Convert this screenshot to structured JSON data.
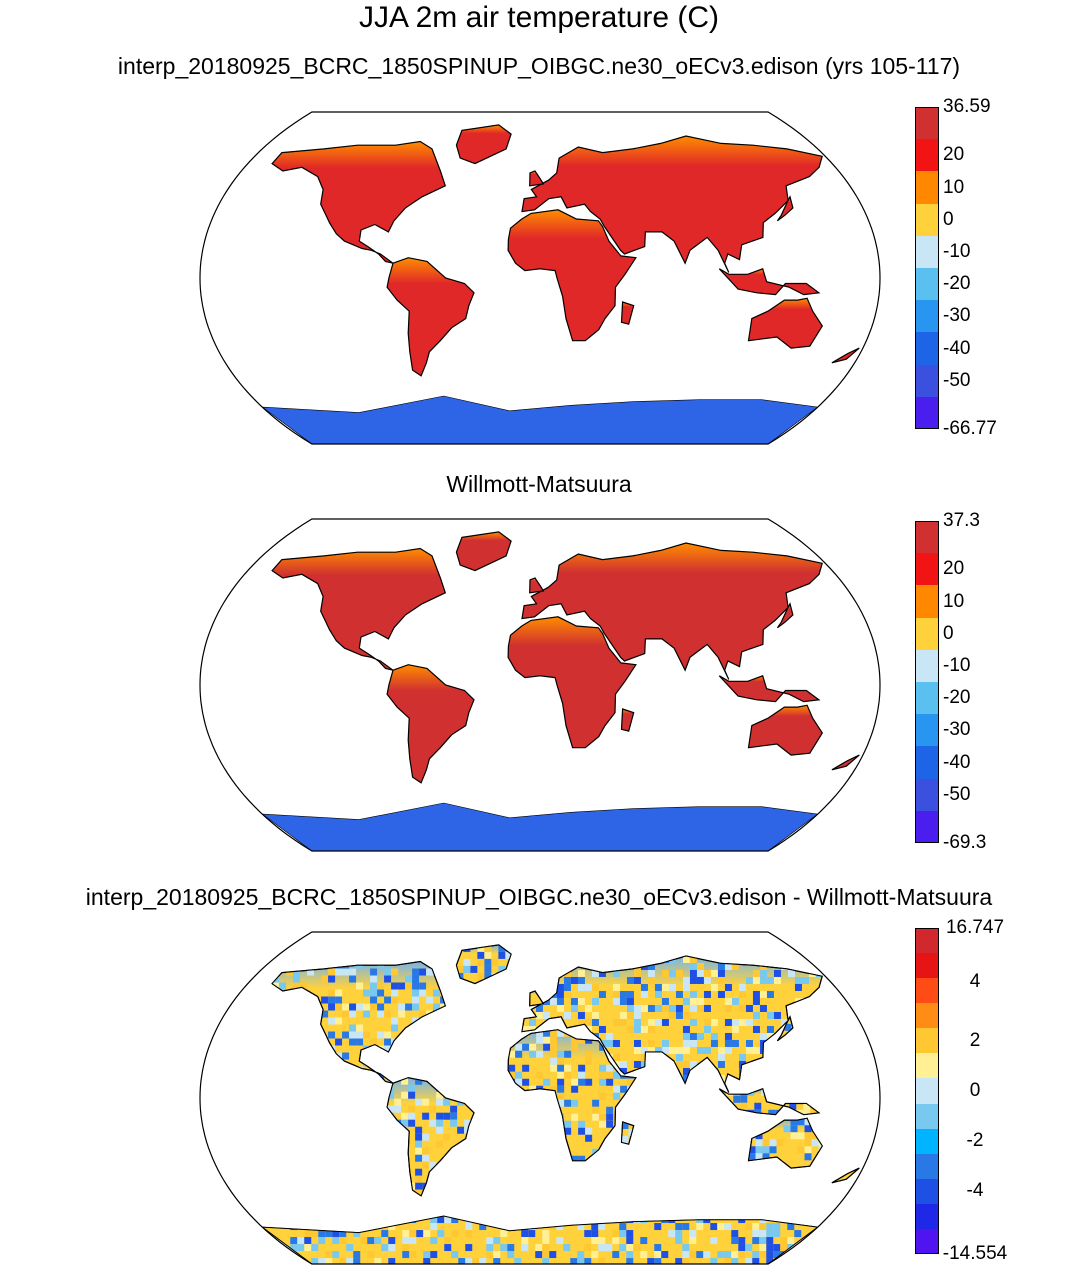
{
  "title": "JJA 2m air temperature (C)",
  "panels": [
    {
      "title": "interp_20180925_BCRC_1850SPINUP_OIBGC.ne30_oECv3.edison (yrs 105-117)",
      "colorbar": {
        "colors": [
          "#d03030",
          "#f21414",
          "#ff8800",
          "#ffd23c",
          "#c8e6f6",
          "#5ac0f0",
          "#2896f0",
          "#1e64e6",
          "#3c50e0",
          "#4b1ef0"
        ],
        "labels": [
          "36.59",
          "20",
          "10",
          "0",
          "-10",
          "-20",
          "-30",
          "-40",
          "-50",
          "-66.77"
        ]
      },
      "map": {
        "field": "model",
        "land_color_ns": [
          "#ff8c00",
          "#e02828"
        ],
        "antarctica": "#2e64e6"
      }
    },
    {
      "title": "Willmott-Matsuura",
      "colorbar": {
        "colors": [
          "#d03030",
          "#f21414",
          "#ff8800",
          "#ffd23c",
          "#c8e6f6",
          "#5ac0f0",
          "#2896f0",
          "#1e64e6",
          "#3c50e0",
          "#4b1ef0"
        ],
        "labels": [
          "37.3",
          "20",
          "10",
          "0",
          "-10",
          "-20",
          "-30",
          "-40",
          "-50",
          "-69.3"
        ]
      },
      "map": {
        "field": "obs",
        "land_color_ns": [
          "#ff8c00",
          "#d03030"
        ],
        "antarctica": "#2e64e6"
      }
    },
    {
      "title": "interp_20180925_BCRC_1850SPINUP_OIBGC.ne30_oECv3.edison - Willmott-Matsuura",
      "colorbar": {
        "colors": [
          "#d0282c",
          "#e61414",
          "#ff4b14",
          "#ff8c14",
          "#ffc832",
          "#fff096",
          "#c8e6f6",
          "#78c8f0",
          "#00b4ff",
          "#2878e6",
          "#1e50e6",
          "#1e28e6",
          "#5014f0"
        ],
        "labels": [
          "16.747",
          "",
          "4",
          "",
          "2",
          "",
          "0",
          "",
          "-2",
          "",
          "-4",
          "",
          "-14.554"
        ]
      },
      "map": {
        "field": "diff",
        "land_color_ns": [
          "#78b4e6",
          "#ffd23c"
        ],
        "antarctica": "#ffd23c"
      }
    }
  ]
}
